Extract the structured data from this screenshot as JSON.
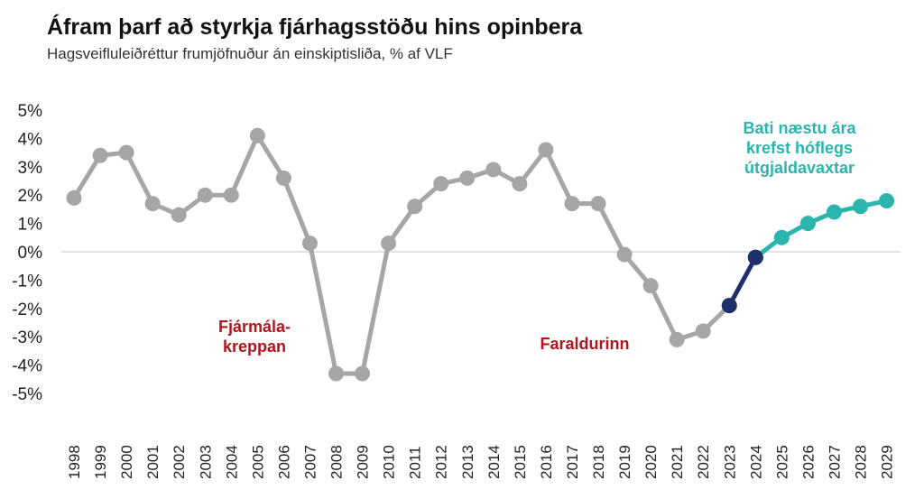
{
  "chart_data": {
    "type": "line",
    "title": "Áfram þarf að styrkja fjárhagsstöðu hins opinbera",
    "subtitle": "Hagsveifluleiðréttur frumjöfnuður án einskiptisliða, % af VLF",
    "xlabel": "",
    "ylabel": "",
    "ylim": [
      -5,
      5
    ],
    "y_ticks": [
      "5%",
      "4%",
      "3%",
      "2%",
      "1%",
      "0%",
      "-1%",
      "-2%",
      "-3%",
      "-4%",
      "-5%"
    ],
    "categories": [
      "1998",
      "1999",
      "2000",
      "2001",
      "2002",
      "2003",
      "2004",
      "2005",
      "2006",
      "2007",
      "2008",
      "2009",
      "2010",
      "2011",
      "2012",
      "2013",
      "2014",
      "2015",
      "2016",
      "2017",
      "2018",
      "2019",
      "2020",
      "2021",
      "2022",
      "2023",
      "2024",
      "2025",
      "2026",
      "2027",
      "2028",
      "2029"
    ],
    "series": [
      {
        "segment": "historical",
        "color": "#a6a6a6",
        "x": [
          "1998",
          "1999",
          "2000",
          "2001",
          "2002",
          "2003",
          "2004",
          "2005",
          "2006",
          "2007",
          "2008",
          "2009",
          "2010",
          "2011",
          "2012",
          "2013",
          "2014",
          "2015",
          "2016",
          "2017",
          "2018",
          "2019",
          "2020",
          "2021",
          "2022",
          "2023"
        ],
        "values": [
          1.9,
          3.4,
          3.5,
          1.7,
          1.3,
          2.0,
          2.0,
          4.1,
          2.6,
          0.3,
          -4.3,
          -4.3,
          0.3,
          1.6,
          2.4,
          2.6,
          2.9,
          2.4,
          3.6,
          1.7,
          1.7,
          -0.1,
          -1.2,
          -3.1,
          -2.8,
          -1.9
        ]
      },
      {
        "segment": "current",
        "color": "#1f2f6b",
        "x": [
          "2023",
          "2024"
        ],
        "values": [
          -1.9,
          -0.2
        ]
      },
      {
        "segment": "forecast",
        "color": "#2bb5ad",
        "x": [
          "2024",
          "2025",
          "2026",
          "2027",
          "2028",
          "2029"
        ],
        "values": [
          -0.2,
          0.5,
          1.0,
          1.4,
          1.6,
          1.8
        ]
      }
    ],
    "zero_line": true,
    "annotations": [
      {
        "text": "Fjármála-\nkreppan",
        "color": "#b0151c"
      },
      {
        "text": "Faraldurinn",
        "color": "#b0151c"
      },
      {
        "text": "Bati næstu ára\nkrefst hóflegs\nútgjaldavaxtar",
        "color": "#2bb5ad"
      }
    ]
  }
}
